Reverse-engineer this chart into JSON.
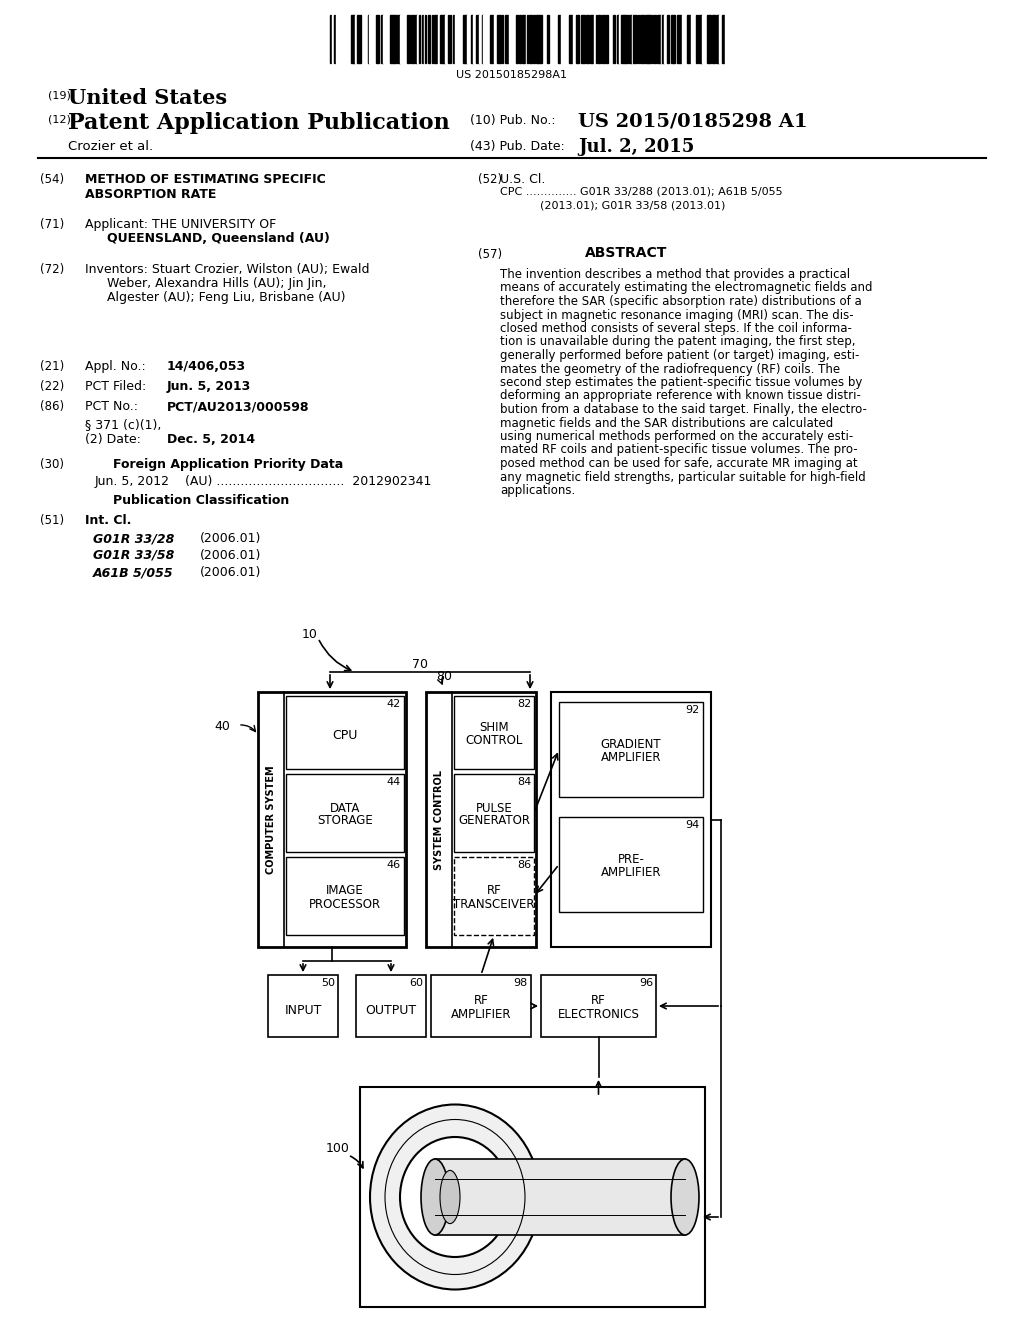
{
  "bg_color": "#ffffff",
  "title_barcode": "US 20150185298A1",
  "header_19_text": "United States",
  "header_12_text": "Patent Application Publication",
  "header_10_val": "US 2015/0185298 A1",
  "author": "Crozier et al.",
  "header_43_val": "Jul. 2, 2015",
  "f54_text1": "METHOD OF ESTIMATING SPECIFIC",
  "f54_text2": "ABSORPTION RATE",
  "f52_text": "U.S. Cl.",
  "f52_cpc": "CPC .............. G01R 33/288 (2013.01); A61B 5/055",
  "f52_cpc2": "(2013.01); G01R 33/58 (2013.01)",
  "f71_text1": "Applicant: THE UNIVERSITY OF",
  "f71_text2": "QUEENSLAND, Queensland (AU)",
  "f57_abstract": "ABSTRACT",
  "f72_text1": "Inventors: Stuart Crozier, Wilston (AU); Ewald",
  "f72_text2": "Weber, Alexandra Hills (AU); Jin Jin,",
  "f72_text3": "Algester (AU); Feng Liu, Brisbane (AU)",
  "abstract_lines": [
    "The invention describes a method that provides a practical",
    "means of accurately estimating the electromagnetic fields and",
    "therefore the SAR (specific absorption rate) distributions of a",
    "subject in magnetic resonance imaging (MRI) scan. The dis-",
    "closed method consists of several steps. If the coil informa-",
    "tion is unavailable during the patent imaging, the first step,",
    "generally performed before patient (or target) imaging, esti-",
    "mates the geometry of the radiofrequency (RF) coils. The",
    "second step estimates the patient-specific tissue volumes by",
    "deforming an appropriate reference with known tissue distri-",
    "bution from a database to the said target. Finally, the electro-",
    "magnetic fields and the SAR distributions are calculated",
    "using numerical methods performed on the accurately esti-",
    "mated RF coils and patient-specific tissue volumes. The pro-",
    "posed method can be used for safe, accurate MR imaging at",
    "any magnetic field strengths, particular suitable for high-field",
    "applications."
  ],
  "f21_val": "14/406,053",
  "f22_val": "Jun. 5, 2013",
  "f86_val": "PCT/AU2013/000598",
  "f86b_text": "§ 371 (c)(1),",
  "f86b_val": "Dec. 5, 2014",
  "f30_data": "Jun. 5, 2012    (AU) ................................  2012902341",
  "f51_c1": "G01R 33/28",
  "f51_c1v": "(2006.01)",
  "f51_c2": "G01R 33/58",
  "f51_c2v": "(2006.01)",
  "f51_c3": "A61B 5/055",
  "f51_c3v": "(2006.01)"
}
